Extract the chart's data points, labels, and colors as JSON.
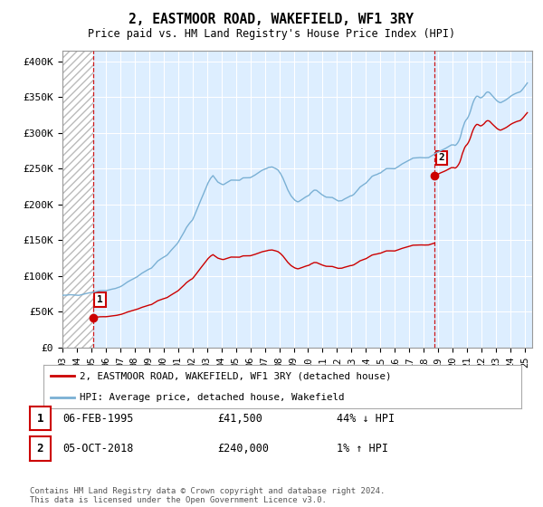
{
  "title": "2, EASTMOOR ROAD, WAKEFIELD, WF1 3RY",
  "subtitle": "Price paid vs. HM Land Registry's House Price Index (HPI)",
  "ylabel_ticks": [
    "£0",
    "£50K",
    "£100K",
    "£150K",
    "£200K",
    "£250K",
    "£300K",
    "£350K",
    "£400K"
  ],
  "ytick_values": [
    0,
    50000,
    100000,
    150000,
    200000,
    250000,
    300000,
    350000,
    400000
  ],
  "ylim": [
    0,
    415000
  ],
  "xlim_start": 1993.0,
  "xlim_end": 2025.5,
  "sale1_x": 1995.1,
  "sale1_y": 41500,
  "sale2_x": 2018.75,
  "sale2_y": 240000,
  "sale1_label": "1",
  "sale2_label": "2",
  "hpi_color": "#7ab0d4",
  "sale_color": "#cc0000",
  "legend_line1": "2, EASTMOOR ROAD, WAKEFIELD, WF1 3RY (detached house)",
  "legend_line2": "HPI: Average price, detached house, Wakefield",
  "table_row1_num": "1",
  "table_row1_date": "06-FEB-1995",
  "table_row1_price": "£41,500",
  "table_row1_hpi": "44% ↓ HPI",
  "table_row2_num": "2",
  "table_row2_date": "05-OCT-2018",
  "table_row2_price": "£240,000",
  "table_row2_hpi": "1% ↑ HPI",
  "footnote": "Contains HM Land Registry data © Crown copyright and database right 2024.\nThis data is licensed under the Open Government Licence v3.0.",
  "plot_bg_color": "#ddeeff",
  "hatch_region_end": 1995.1,
  "dashed_line1_x": 1995.1,
  "dashed_line2_x": 2018.75
}
